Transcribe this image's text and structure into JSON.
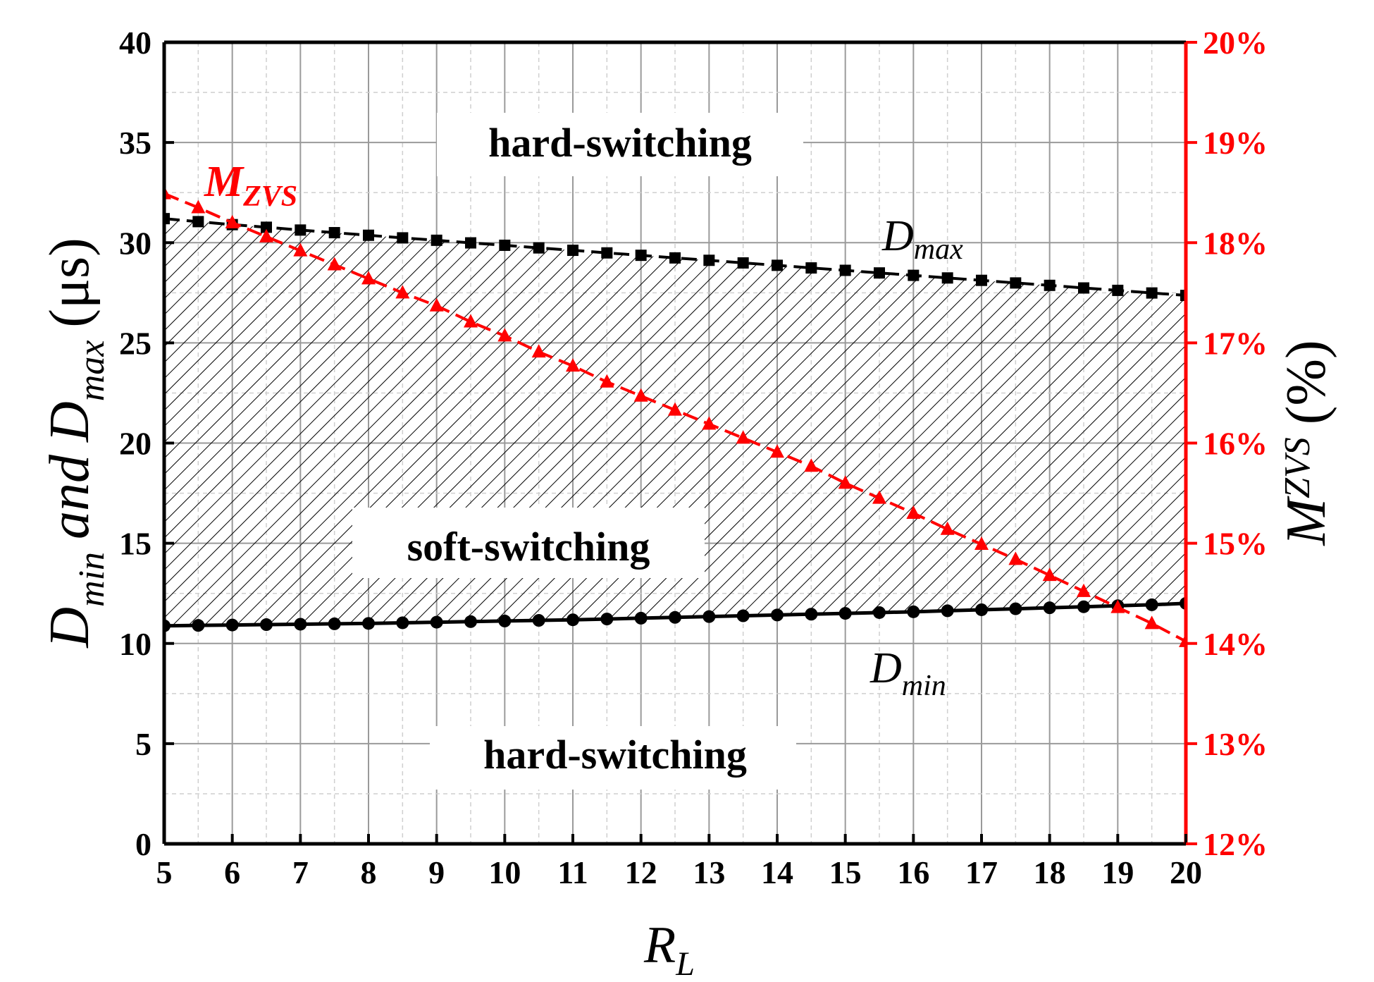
{
  "chart_data": {
    "type": "line",
    "xlabel": {
      "main": "R",
      "sub": "L"
    },
    "ylabel_left": {
      "main1": "D",
      "sub1": "min",
      "mid": "and",
      "main2": "D",
      "sub2": "max",
      "unit": "(μs)"
    },
    "ylabel_right": {
      "main": "M",
      "sub": "ZVS",
      "unit": "(%)"
    },
    "xlim": [
      5,
      20
    ],
    "ylim_left": [
      0,
      40
    ],
    "ylim_right": [
      12,
      20
    ],
    "x_ticks": [
      "5",
      "6",
      "7",
      "8",
      "9",
      "10",
      "11",
      "12",
      "13",
      "14",
      "15",
      "16",
      "17",
      "18",
      "19",
      "20"
    ],
    "y_ticks_left": [
      "0",
      "5",
      "10",
      "15",
      "20",
      "25",
      "30",
      "35",
      "40"
    ],
    "y_ticks_right": [
      "12%",
      "13%",
      "14%",
      "15%",
      "16%",
      "17%",
      "18%",
      "19%",
      "20%"
    ],
    "grid": true,
    "x": [
      5,
      5.5,
      6,
      6.5,
      7,
      7.5,
      8,
      8.5,
      9,
      9.5,
      10,
      10.5,
      11,
      11.5,
      12,
      12.5,
      13,
      13.5,
      14,
      14.5,
      15,
      15.5,
      16,
      16.5,
      17,
      17.5,
      18,
      18.5,
      19,
      19.5,
      20
    ],
    "series": [
      {
        "name": "D_max",
        "label_main": "D",
        "label_sub": "max",
        "axis": "left",
        "color": "#000000",
        "marker": "square",
        "line": "dashed",
        "values": [
          31.2,
          31.05,
          30.9,
          30.77,
          30.63,
          30.5,
          30.37,
          30.24,
          30.12,
          29.99,
          29.87,
          29.74,
          29.62,
          29.49,
          29.37,
          29.24,
          29.12,
          28.99,
          28.87,
          28.74,
          28.62,
          28.49,
          28.37,
          28.24,
          28.12,
          27.99,
          27.87,
          27.74,
          27.62,
          27.49,
          27.37
        ]
      },
      {
        "name": "D_min",
        "label_main": "D",
        "label_sub": "min",
        "axis": "left",
        "color": "#000000",
        "marker": "circle",
        "line": "solid",
        "values": [
          10.88,
          10.9,
          10.92,
          10.94,
          10.96,
          10.98,
          11.0,
          11.03,
          11.06,
          11.09,
          11.12,
          11.15,
          11.18,
          11.22,
          11.26,
          11.3,
          11.34,
          11.38,
          11.42,
          11.46,
          11.5,
          11.54,
          11.58,
          11.63,
          11.68,
          11.73,
          11.78,
          11.83,
          11.88,
          11.93,
          12.0
        ]
      },
      {
        "name": "M_ZVS",
        "label_main": "M",
        "label_sub": "ZVS",
        "axis": "right",
        "color": "#ff0000",
        "marker": "triangle",
        "line": "dashed",
        "values": [
          18.49,
          18.35,
          18.2,
          18.06,
          17.92,
          17.78,
          17.64,
          17.5,
          17.37,
          17.21,
          17.07,
          16.91,
          16.77,
          16.61,
          16.47,
          16.33,
          16.19,
          16.05,
          15.91,
          15.77,
          15.6,
          15.45,
          15.3,
          15.14,
          14.99,
          14.84,
          14.68,
          14.52,
          14.36,
          14.2,
          14.02
        ]
      }
    ],
    "regions": [
      {
        "label": "hard-switching",
        "position": "top"
      },
      {
        "label": "soft-switching",
        "position": "middle",
        "hatched": true
      },
      {
        "label": "hard-switching",
        "position": "bottom"
      }
    ],
    "colors": {
      "right_axis": "#ff0000",
      "left_axis": "#000000"
    }
  }
}
